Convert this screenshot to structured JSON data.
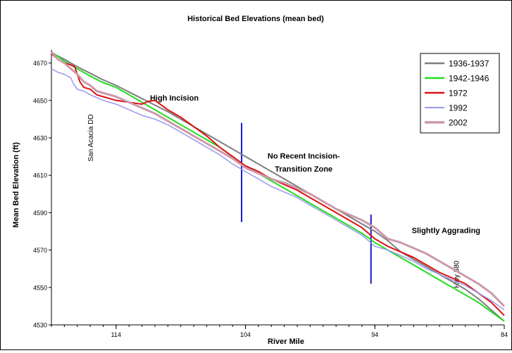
{
  "chart_data": {
    "type": "line",
    "title": "Historical Bed Elevations (mean bed)",
    "xlabel": "River Mile",
    "ylabel": "Mean Bed Elevation (ft)",
    "x_reversed": true,
    "xlim": [
      119,
      84
    ],
    "ylim": [
      4530,
      4677
    ],
    "xticks": [
      114,
      104,
      94,
      84
    ],
    "yticks": [
      4530,
      4550,
      4570,
      4590,
      4610,
      4630,
      4650,
      4670
    ],
    "grid": false,
    "legend_position": "top-right",
    "series": [
      {
        "name": "1936-1937",
        "color": "#7f7f7f",
        "x": [
          119,
          118,
          117,
          116,
          115,
          114,
          113,
          112,
          111,
          110,
          109,
          108,
          107,
          106,
          105,
          104,
          103,
          102,
          101,
          100,
          99,
          98,
          97,
          96,
          95,
          94,
          93,
          92,
          91,
          90,
          89,
          88,
          87,
          86,
          85,
          84
        ],
        "y": [
          4675.5,
          4672,
          4668,
          4664.5,
          4661,
          4658,
          4654.5,
          4651,
          4647.5,
          4644,
          4640,
          4636,
          4632,
          4628,
          4624,
          4620,
          4616,
          4612,
          4608,
          4604,
          4600,
          4596,
          4592,
          4588,
          4584,
          4580,
          4575,
          4569,
          4565,
          4561,
          4557,
          4553,
          4549,
          4544,
          4538,
          4532
        ]
      },
      {
        "name": "1942-1946",
        "color": "#22dd22",
        "x": [
          119,
          118,
          117,
          116,
          115,
          114,
          113,
          112,
          111,
          110,
          109,
          108,
          107,
          106,
          105,
          104,
          103,
          102,
          101,
          100,
          99,
          98,
          97,
          96,
          95,
          94,
          93,
          92,
          91,
          90,
          89,
          88,
          87,
          86,
          85,
          84
        ],
        "y": [
          4676,
          4671,
          4667,
          4663,
          4659.5,
          4657,
          4653,
          4649,
          4645,
          4641,
          4637,
          4633,
          4629,
          4625,
          4620,
          4615,
          4611,
          4607,
          4603,
          4599,
          4595,
          4591,
          4587,
          4583,
          4579,
          4574,
          4570,
          4566,
          4562,
          4558,
          4554,
          4550,
          4546,
          4542,
          4537,
          4532
        ]
      },
      {
        "name": "1972",
        "color": "#dd1111",
        "x": [
          119,
          118.5,
          118,
          117.5,
          117.2,
          116.8,
          116.5,
          116,
          115.5,
          115,
          114.5,
          114,
          113,
          112,
          111.5,
          111,
          110,
          109,
          108,
          107,
          106,
          105,
          104,
          103,
          102,
          101,
          100,
          99,
          98,
          97,
          96,
          95,
          94,
          93,
          92,
          91,
          90,
          89,
          88,
          87,
          86,
          85,
          84
        ],
        "y": [
          4675,
          4672,
          4670,
          4669,
          4668,
          4660,
          4657,
          4656,
          4653,
          4652,
          4651,
          4650,
          4649,
          4648,
          4649.5,
          4650,
          4645,
          4641,
          4636,
          4631,
          4625,
          4620,
          4615,
          4612,
          4608,
          4605,
          4602,
          4598,
          4594,
          4590,
          4586,
          4582,
          4576,
          4572,
          4569,
          4566,
          4562,
          4558,
          4555,
          4552,
          4547,
          4542,
          4535
        ]
      },
      {
        "name": "1992",
        "color": "#9999ee",
        "x": [
          119,
          118.5,
          118,
          117.5,
          117.3,
          117,
          116.5,
          116,
          115.5,
          115,
          114,
          113,
          112,
          111,
          110,
          109,
          108,
          107,
          106,
          105,
          104,
          103,
          102,
          101,
          100,
          99,
          98,
          97,
          96,
          95,
          94,
          93,
          92,
          91,
          90,
          89,
          88,
          87,
          86,
          85,
          84
        ],
        "y": [
          4667,
          4665,
          4664,
          4662,
          4659,
          4656,
          4655,
          4653,
          4651.5,
          4650,
          4648,
          4645,
          4642,
          4640,
          4637,
          4633,
          4629,
          4625,
          4621,
          4616,
          4612,
          4608,
          4604,
          4601,
          4598,
          4594,
          4590,
          4586,
          4582,
          4578,
          4572,
          4570,
          4567,
          4564,
          4560,
          4557,
          4554,
          4551,
          4547,
          4543,
          4538
        ]
      },
      {
        "name": "2002",
        "color": "#cc99aa",
        "x": [
          119,
          118.5,
          118,
          117.5,
          117,
          116.5,
          116,
          115.5,
          115,
          114,
          113,
          112,
          111,
          110,
          109,
          108,
          107,
          106,
          105,
          104,
          103,
          102,
          101,
          100,
          99,
          98,
          97,
          96,
          95,
          94,
          93,
          92,
          91,
          90,
          89,
          88,
          87,
          86,
          85,
          84
        ],
        "y": [
          4676,
          4672,
          4670,
          4667,
          4664,
          4660,
          4658,
          4655,
          4654,
          4652,
          4649,
          4646,
          4643,
          4639,
          4635,
          4631,
          4627,
          4623,
          4619,
          4614,
          4611,
          4608,
          4606,
          4603,
          4600,
          4596,
          4592,
          4589,
          4586,
          4582,
          4576,
          4574,
          4571,
          4568,
          4564,
          4560,
          4556,
          4552,
          4547,
          4540
        ]
      }
    ],
    "annotations": [
      {
        "text": "High Incision",
        "x": 109.5,
        "y": 4650
      },
      {
        "text": "No Recent Incision-",
        "x": 99.5,
        "y": 4619
      },
      {
        "text": "Transition Zone",
        "x": 99.5,
        "y": 4612
      },
      {
        "text": "Slightly Aggrading",
        "x": 88.5,
        "y": 4579
      },
      {
        "text": "San Acacia DD",
        "x": 115.8,
        "y": 4630,
        "rotated": true
      },
      {
        "text": "Hwy 380",
        "x": 87.5,
        "y": 4557,
        "rotated": true
      }
    ],
    "divider_lines": [
      {
        "x": 104.3,
        "y_top": 4638,
        "y_bottom": 4585
      },
      {
        "x": 94.3,
        "y_top": 4589,
        "y_bottom": 4552
      }
    ]
  }
}
